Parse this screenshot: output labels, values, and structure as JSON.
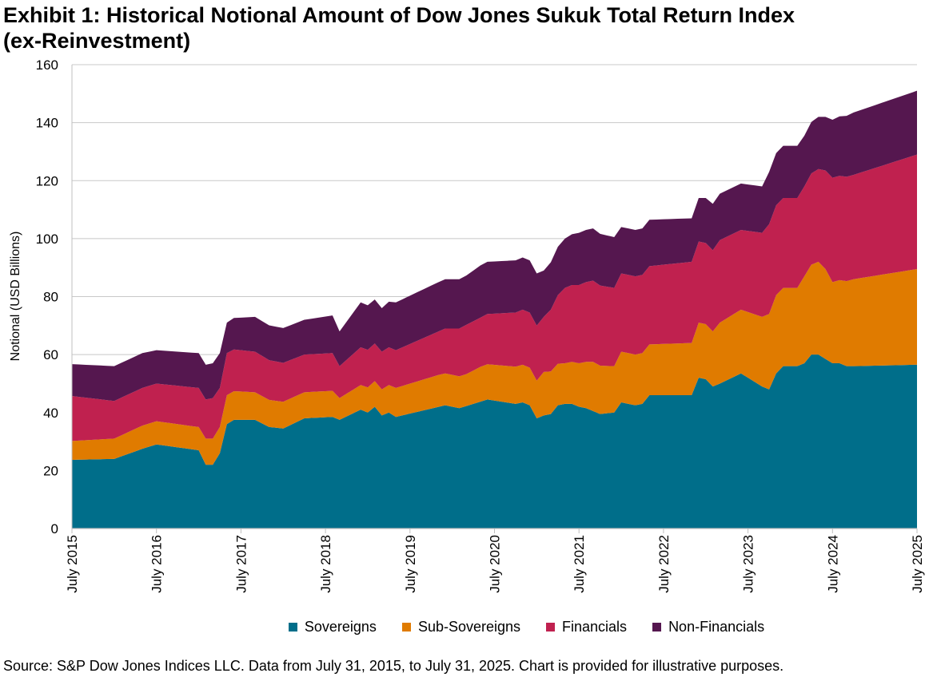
{
  "title_line1": "Exhibit 1: Historical Notional Amount of Dow Jones Sukuk Total Return Index",
  "title_line2": "(ex-Reinvestment)",
  "source_note": "Source: S&P Dow Jones Indices LLC. Data from July 31, 2015, to July 31, 2025. Chart is provided for illustrative purposes.",
  "chart_data": {
    "type": "area",
    "stacked": true,
    "title": "Exhibit 1: Historical Notional Amount of Dow Jones Sukuk Total Return Index (ex-Reinvestment)",
    "xlabel": "",
    "ylabel": "Notional (USD Billions)",
    "ylim": [
      0,
      160
    ],
    "yticks": [
      0,
      20,
      40,
      60,
      80,
      100,
      120,
      140,
      160
    ],
    "grid": true,
    "legend_position": "bottom",
    "x_start": "2015-07",
    "x_end": "2025-07",
    "x_tick_labels": [
      "July 2015",
      "July 2016",
      "July 2017",
      "July 2018",
      "July 2019",
      "July 2020",
      "July 2021",
      "July 2022",
      "July 2023",
      "July 2024",
      "July 2025"
    ],
    "series": [
      {
        "name": "Sovereigns",
        "color": "#006e8a",
        "anchors": [
          [
            0,
            23.7
          ],
          [
            6,
            24
          ],
          [
            10,
            27.5
          ],
          [
            12,
            29
          ],
          [
            18,
            27
          ],
          [
            19,
            22
          ],
          [
            20,
            22
          ],
          [
            21,
            26
          ],
          [
            22,
            36
          ],
          [
            23,
            37.5
          ],
          [
            26,
            37.5
          ],
          [
            28,
            35
          ],
          [
            30,
            34.5
          ],
          [
            33,
            38
          ],
          [
            37,
            38.5
          ],
          [
            38,
            37.5
          ],
          [
            41,
            41
          ],
          [
            42,
            40
          ],
          [
            43,
            42
          ],
          [
            44,
            39
          ],
          [
            45,
            40
          ],
          [
            46,
            38.5
          ],
          [
            53,
            42.5
          ],
          [
            55,
            41.5
          ],
          [
            59,
            44.5
          ],
          [
            63,
            43
          ],
          [
            64,
            43.5
          ],
          [
            65,
            42.5
          ],
          [
            66,
            38
          ],
          [
            67,
            39
          ],
          [
            68,
            39.5
          ],
          [
            69,
            42.5
          ],
          [
            70,
            43
          ],
          [
            71,
            43
          ],
          [
            72,
            42
          ],
          [
            73,
            41.5
          ],
          [
            74,
            40.5
          ],
          [
            75,
            39.5
          ],
          [
            77,
            40
          ],
          [
            78,
            43.5
          ],
          [
            79,
            43
          ],
          [
            80,
            42.5
          ],
          [
            81,
            43
          ],
          [
            82,
            46
          ],
          [
            88,
            46
          ],
          [
            89,
            52
          ],
          [
            90,
            51.5
          ],
          [
            91,
            49
          ],
          [
            92,
            50
          ],
          [
            95,
            53.5
          ],
          [
            98,
            49
          ],
          [
            99,
            48
          ],
          [
            100,
            53.5
          ],
          [
            101,
            56
          ],
          [
            103,
            56
          ],
          [
            104,
            57
          ],
          [
            105,
            60
          ],
          [
            106,
            60
          ],
          [
            107,
            58.5
          ],
          [
            108,
            57
          ],
          [
            109,
            57
          ],
          [
            110,
            56
          ],
          [
            111,
            56
          ],
          [
            120,
            56.5
          ]
        ]
      },
      {
        "name": "Sub-Sovereigns",
        "color": "#e07b00",
        "anchors": [
          [
            0,
            6.5
          ],
          [
            6,
            7
          ],
          [
            10,
            8
          ],
          [
            12,
            8
          ],
          [
            18,
            8
          ],
          [
            19,
            9
          ],
          [
            20,
            9
          ],
          [
            21,
            9
          ],
          [
            22,
            10
          ],
          [
            26,
            9.5
          ],
          [
            33,
            9
          ],
          [
            37,
            9
          ],
          [
            38,
            7.5
          ],
          [
            41,
            8.5
          ],
          [
            44,
            9
          ],
          [
            46,
            10
          ],
          [
            52,
            11
          ],
          [
            56,
            11
          ],
          [
            58,
            12
          ],
          [
            64,
            13
          ],
          [
            66,
            13
          ],
          [
            67,
            15
          ],
          [
            70,
            14
          ],
          [
            72,
            15
          ],
          [
            74,
            17
          ],
          [
            77,
            16
          ],
          [
            78,
            17.5
          ],
          [
            82,
            17.5
          ],
          [
            88,
            18
          ],
          [
            89,
            19
          ],
          [
            91,
            19
          ],
          [
            92,
            21
          ],
          [
            95,
            22
          ],
          [
            98,
            24
          ],
          [
            99,
            26
          ],
          [
            100,
            27
          ],
          [
            103,
            27
          ],
          [
            104,
            30
          ],
          [
            106,
            32
          ],
          [
            107,
            31
          ],
          [
            108,
            28
          ],
          [
            111,
            30
          ],
          [
            120,
            33
          ]
        ]
      },
      {
        "name": "Financials",
        "color": "#c0214f",
        "anchors": [
          [
            0,
            15.5
          ],
          [
            6,
            13
          ],
          [
            10,
            13
          ],
          [
            12,
            13
          ],
          [
            18,
            13.5
          ],
          [
            19,
            13.5
          ],
          [
            20,
            14
          ],
          [
            21,
            13.5
          ],
          [
            22,
            14.5
          ],
          [
            26,
            14
          ],
          [
            33,
            13
          ],
          [
            37,
            13
          ],
          [
            38,
            11
          ],
          [
            41,
            13
          ],
          [
            44,
            13
          ],
          [
            46,
            13
          ],
          [
            52,
            15
          ],
          [
            56,
            17
          ],
          [
            58,
            17
          ],
          [
            64,
            19
          ],
          [
            66,
            19
          ],
          [
            67,
            19
          ],
          [
            70,
            26
          ],
          [
            72,
            27
          ],
          [
            74,
            28
          ],
          [
            77,
            27
          ],
          [
            78,
            27
          ],
          [
            82,
            27
          ],
          [
            88,
            28
          ],
          [
            89,
            28
          ],
          [
            91,
            28
          ],
          [
            92,
            28.5
          ],
          [
            95,
            27.5
          ],
          [
            98,
            29
          ],
          [
            99,
            31
          ],
          [
            100,
            31
          ],
          [
            103,
            31
          ],
          [
            104,
            31
          ],
          [
            106,
            32
          ],
          [
            107,
            34
          ],
          [
            108,
            36
          ],
          [
            111,
            36
          ],
          [
            120,
            39.5
          ]
        ]
      },
      {
        "name": "Non-Financials",
        "color": "#55174f",
        "anchors": [
          [
            0,
            11
          ],
          [
            6,
            12
          ],
          [
            10,
            12
          ],
          [
            12,
            11.5
          ],
          [
            18,
            12
          ],
          [
            19,
            12
          ],
          [
            20,
            12
          ],
          [
            21,
            12
          ],
          [
            22,
            10.5
          ],
          [
            26,
            12
          ],
          [
            33,
            12
          ],
          [
            37,
            13
          ],
          [
            38,
            12
          ],
          [
            41,
            15.5
          ],
          [
            44,
            15
          ],
          [
            46,
            16.5
          ],
          [
            52,
            17
          ],
          [
            56,
            17
          ],
          [
            58,
            18
          ],
          [
            64,
            18
          ],
          [
            66,
            18
          ],
          [
            67,
            16
          ],
          [
            70,
            17
          ],
          [
            72,
            18
          ],
          [
            74,
            18
          ],
          [
            77,
            17.5
          ],
          [
            78,
            16
          ],
          [
            82,
            16
          ],
          [
            88,
            15
          ],
          [
            89,
            15
          ],
          [
            91,
            16
          ],
          [
            92,
            16
          ],
          [
            95,
            16
          ],
          [
            98,
            16
          ],
          [
            99,
            18
          ],
          [
            100,
            18
          ],
          [
            103,
            18
          ],
          [
            104,
            17.5
          ],
          [
            106,
            18
          ],
          [
            107,
            18.5
          ],
          [
            108,
            20
          ],
          [
            111,
            21.5
          ],
          [
            120,
            22
          ]
        ]
      }
    ]
  }
}
